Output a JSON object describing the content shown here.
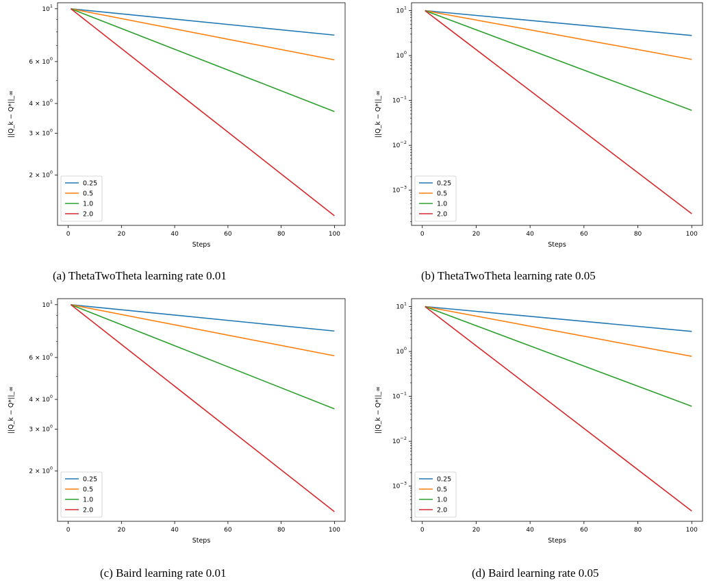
{
  "captions": {
    "a": "(a) ThetaTwoTheta learning rate 0.01",
    "b": "(b) ThetaTwoTheta learning rate 0.05",
    "c": "(c) Baird learning rate 0.01",
    "d": "(d) Baird learning rate 0.05"
  },
  "colors": {
    "0.25": "#1f77b4",
    "0.5": "#ff7f0e",
    "1.0": "#2ca02c",
    "2.0": "#d62728"
  },
  "chart_data": [
    {
      "type": "line",
      "id": "a",
      "xlabel": "Steps",
      "ylabel": "||Q_k − Q*||_∞",
      "y_scale": "log",
      "xlim": [
        -4,
        104
      ],
      "ylim": [
        1.23,
        10.6
      ],
      "xticks": [
        0,
        20,
        40,
        60,
        80,
        100
      ],
      "yticks": [
        {
          "value": 10,
          "mant": "",
          "exp": "1"
        },
        {
          "value": 6,
          "mant": "6 × ",
          "exp": "0"
        },
        {
          "value": 4,
          "mant": "4 × ",
          "exp": "0"
        },
        {
          "value": 3,
          "mant": "3 × ",
          "exp": "0"
        },
        {
          "value": 2,
          "mant": "2 × ",
          "exp": "0"
        }
      ],
      "legend": "lower-left",
      "series": [
        {
          "name": "0.25",
          "x": [
            1,
            100
          ],
          "y": [
            10,
            7.75
          ]
        },
        {
          "name": "0.5",
          "x": [
            1,
            100
          ],
          "y": [
            10,
            6.1
          ]
        },
        {
          "name": "1.0",
          "x": [
            1,
            100
          ],
          "y": [
            10,
            3.7
          ]
        },
        {
          "name": "2.0",
          "x": [
            1,
            100
          ],
          "y": [
            10,
            1.35
          ]
        }
      ]
    },
    {
      "type": "line",
      "id": "b",
      "xlabel": "Steps",
      "ylabel": "||Q_k − Q*||_∞",
      "y_scale": "log",
      "xlim": [
        -4,
        104
      ],
      "ylim": [
        0.000165,
        15
      ],
      "xticks": [
        0,
        20,
        40,
        60,
        80,
        100
      ],
      "yticks": [
        {
          "value": 10,
          "mant": "10",
          "exp": "1"
        },
        {
          "value": 1,
          "mant": "10",
          "exp": "0"
        },
        {
          "value": 0.1,
          "mant": "10",
          "exp": "−1"
        },
        {
          "value": 0.01,
          "mant": "10",
          "exp": "−2"
        },
        {
          "value": 0.001,
          "mant": "10",
          "exp": "−3"
        }
      ],
      "legend": "lower-left",
      "series": [
        {
          "name": "0.25",
          "x": [
            1,
            100
          ],
          "y": [
            10,
            2.8
          ]
        },
        {
          "name": "0.5",
          "x": [
            1,
            100
          ],
          "y": [
            10,
            0.82
          ]
        },
        {
          "name": "1.0",
          "x": [
            1,
            100
          ],
          "y": [
            10,
            0.06
          ]
        },
        {
          "name": "2.0",
          "x": [
            1,
            100
          ],
          "y": [
            10,
            0.0003
          ]
        }
      ]
    },
    {
      "type": "line",
      "id": "c",
      "xlabel": "Steps",
      "ylabel": "||Q_k − Q*||_∞",
      "y_scale": "log",
      "xlim": [
        -4,
        104
      ],
      "ylim": [
        1.23,
        10.6
      ],
      "xticks": [
        0,
        20,
        40,
        60,
        80,
        100
      ],
      "yticks": [
        {
          "value": 10,
          "mant": "",
          "exp": "1"
        },
        {
          "value": 6,
          "mant": "6 × ",
          "exp": "0"
        },
        {
          "value": 4,
          "mant": "4 × ",
          "exp": "0"
        },
        {
          "value": 3,
          "mant": "3 × ",
          "exp": "0"
        },
        {
          "value": 2,
          "mant": "2 × ",
          "exp": "0"
        }
      ],
      "legend": "lower-left",
      "series": [
        {
          "name": "0.25",
          "x": [
            1,
            100
          ],
          "y": [
            10,
            7.75
          ]
        },
        {
          "name": "0.5",
          "x": [
            1,
            100
          ],
          "y": [
            10,
            6.1
          ]
        },
        {
          "name": "1.0",
          "x": [
            1,
            100
          ],
          "y": [
            10,
            3.65
          ]
        },
        {
          "name": "2.0",
          "x": [
            1,
            100
          ],
          "y": [
            10,
            1.35
          ]
        }
      ]
    },
    {
      "type": "line",
      "id": "d",
      "xlabel": "Steps",
      "ylabel": "||Q_k − Q*||_∞",
      "y_scale": "log",
      "xlim": [
        -4,
        104
      ],
      "ylim": [
        0.000165,
        15
      ],
      "xticks": [
        0,
        20,
        40,
        60,
        80,
        100
      ],
      "yticks": [
        {
          "value": 10,
          "mant": "10",
          "exp": "1"
        },
        {
          "value": 1,
          "mant": "10",
          "exp": "0"
        },
        {
          "value": 0.1,
          "mant": "10",
          "exp": "−1"
        },
        {
          "value": 0.01,
          "mant": "10",
          "exp": "−2"
        },
        {
          "value": 0.001,
          "mant": "10",
          "exp": "−3"
        }
      ],
      "legend": "lower-left",
      "series": [
        {
          "name": "0.25",
          "x": [
            1,
            100
          ],
          "y": [
            10,
            2.8
          ]
        },
        {
          "name": "0.5",
          "x": [
            1,
            100
          ],
          "y": [
            10,
            0.78
          ]
        },
        {
          "name": "1.0",
          "x": [
            1,
            100
          ],
          "y": [
            10,
            0.06
          ]
        },
        {
          "name": "2.0",
          "x": [
            1,
            100
          ],
          "y": [
            10,
            0.00028
          ]
        }
      ]
    }
  ]
}
